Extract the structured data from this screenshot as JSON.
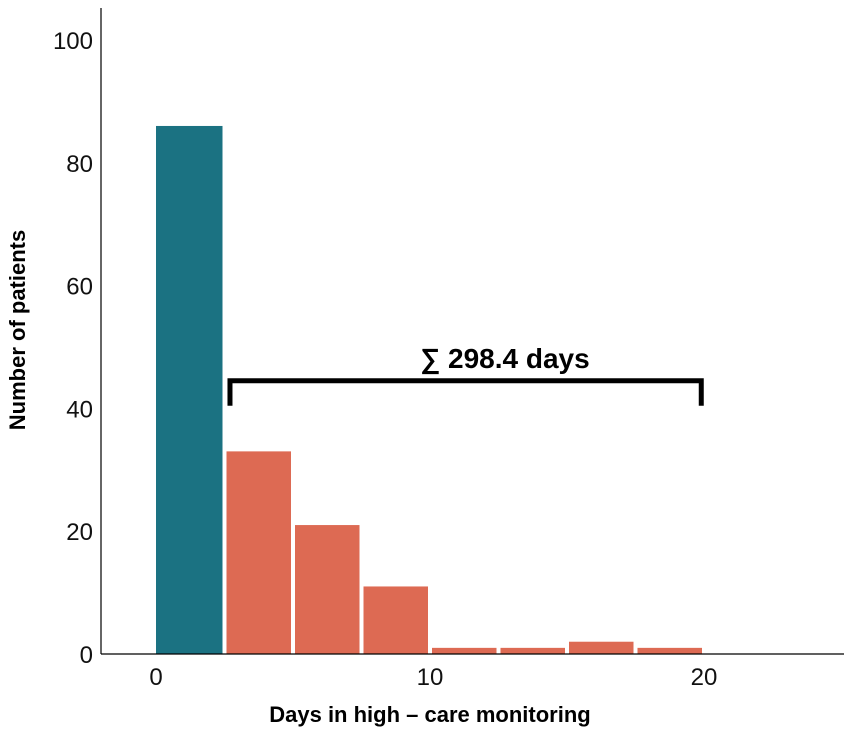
{
  "chart_data": {
    "type": "bar",
    "xlabel": "Days in high – care monitoring",
    "ylabel": "Number of patients",
    "xlim": [
      -2,
      25
    ],
    "ylim": [
      0,
      105
    ],
    "xticks": [
      0,
      10,
      20
    ],
    "yticks": [
      0,
      20,
      40,
      60,
      80,
      100
    ],
    "grid": false,
    "bins": [
      {
        "start": 0,
        "end": 2.5,
        "value": 86,
        "color": "#1b7282"
      },
      {
        "start": 2.5,
        "end": 5,
        "value": 33,
        "color": "#dd6a53"
      },
      {
        "start": 5,
        "end": 7.5,
        "value": 21,
        "color": "#dd6a53"
      },
      {
        "start": 7.5,
        "end": 10,
        "value": 11,
        "color": "#dd6a53"
      },
      {
        "start": 10,
        "end": 12.5,
        "value": 1,
        "color": "#dd6a53"
      },
      {
        "start": 12.5,
        "end": 15,
        "value": 1,
        "color": "#dd6a53"
      },
      {
        "start": 15,
        "end": 17.5,
        "value": 2,
        "color": "#dd6a53"
      },
      {
        "start": 17.5,
        "end": 20,
        "value": 1,
        "color": "#dd6a53"
      }
    ],
    "annotation": {
      "text": "∑ 298.4 days",
      "bracket_from": 2.7,
      "bracket_to": 19.9,
      "bracket_y": 44.5
    },
    "colors": {
      "zero_day_bar": "#1b7282",
      "monitoring_bars": "#dd6a53"
    }
  }
}
